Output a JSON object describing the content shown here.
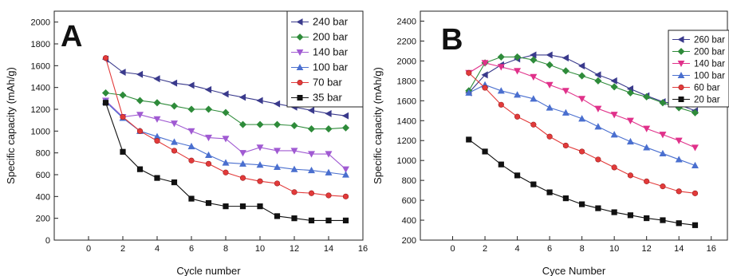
{
  "chart_data": [
    {
      "type": "line",
      "panel_label": "A",
      "xlabel": "Cycle number",
      "ylabel": "Specific capacity (mAh/g)",
      "xlim": [
        -2,
        16
      ],
      "ylim": [
        0,
        2100
      ],
      "xticks": [
        0,
        2,
        4,
        6,
        8,
        10,
        12,
        14,
        16
      ],
      "yticks": [
        0,
        200,
        400,
        600,
        800,
        1000,
        1200,
        1400,
        1600,
        1800,
        2000
      ],
      "legend_position": "top-right",
      "x": [
        1,
        2,
        3,
        4,
        5,
        6,
        7,
        8,
        9,
        10,
        11,
        12,
        13,
        14,
        15
      ],
      "series": [
        {
          "name": "240 bar",
          "color": "#3a3a8c",
          "marker": "triangle-left",
          "values": [
            1660,
            1540,
            1520,
            1480,
            1440,
            1420,
            1380,
            1340,
            1310,
            1280,
            1250,
            1220,
            1190,
            1160,
            1140
          ]
        },
        {
          "name": "200 bar",
          "color": "#2e8b3a",
          "marker": "diamond",
          "values": [
            1350,
            1330,
            1280,
            1260,
            1230,
            1200,
            1200,
            1170,
            1060,
            1060,
            1060,
            1050,
            1020,
            1020,
            1030
          ]
        },
        {
          "name": "140 bar",
          "color": "#a05ad2",
          "marker": "triangle-down",
          "values": [
            1280,
            1130,
            1150,
            1110,
            1070,
            1000,
            940,
            930,
            800,
            850,
            820,
            820,
            790,
            790,
            650
          ]
        },
        {
          "name": "100 bar",
          "color": "#4a6fcf",
          "marker": "triangle-up",
          "values": [
            1270,
            1120,
            1000,
            950,
            900,
            860,
            780,
            710,
            700,
            690,
            670,
            650,
            640,
            620,
            600
          ]
        },
        {
          "name": "70 bar",
          "color": "#e23a3a",
          "marker": "circle",
          "values": [
            1670,
            1130,
            1000,
            910,
            820,
            730,
            700,
            620,
            570,
            540,
            520,
            440,
            430,
            410,
            400
          ]
        },
        {
          "name": "35 bar",
          "color": "#111111",
          "marker": "square",
          "values": [
            1260,
            810,
            650,
            570,
            530,
            380,
            340,
            310,
            310,
            310,
            220,
            200,
            180,
            180,
            180
          ]
        }
      ]
    },
    {
      "type": "line",
      "panel_label": "B",
      "xlabel": "Cyce Number",
      "ylabel": "Specific capacity (mAh/g)",
      "xlim": [
        -2,
        17
      ],
      "ylim": [
        200,
        2500
      ],
      "xticks": [
        0,
        2,
        4,
        6,
        8,
        10,
        12,
        14,
        16
      ],
      "yticks": [
        200,
        400,
        600,
        800,
        1000,
        1200,
        1400,
        1600,
        1800,
        2000,
        2200,
        2400
      ],
      "legend_position": "top-right",
      "x": [
        1,
        2,
        3,
        4,
        5,
        6,
        7,
        8,
        9,
        10,
        11,
        12,
        13,
        14,
        15
      ],
      "series": [
        {
          "name": "260 bar",
          "color": "#3a3a8c",
          "marker": "triangle-left",
          "values": [
            1680,
            1860,
            1960,
            2020,
            2060,
            2060,
            2030,
            1950,
            1860,
            1800,
            1720,
            1650,
            1590,
            1560,
            1500
          ]
        },
        {
          "name": "200 bar",
          "color": "#2e8b3a",
          "marker": "diamond",
          "values": [
            1700,
            1980,
            2040,
            2040,
            2010,
            1960,
            1900,
            1850,
            1800,
            1740,
            1680,
            1640,
            1580,
            1530,
            1480
          ]
        },
        {
          "name": "140 bar",
          "color": "#e0318a",
          "marker": "triangle-down",
          "values": [
            1880,
            1980,
            1940,
            1900,
            1840,
            1760,
            1700,
            1620,
            1520,
            1460,
            1400,
            1320,
            1260,
            1200,
            1130
          ]
        },
        {
          "name": "100 bar",
          "color": "#4a6fcf",
          "marker": "triangle-up",
          "values": [
            1680,
            1760,
            1700,
            1660,
            1620,
            1530,
            1480,
            1420,
            1340,
            1260,
            1190,
            1130,
            1070,
            1010,
            950
          ]
        },
        {
          "name": "60 bar",
          "color": "#e23a3a",
          "marker": "circle",
          "values": [
            1880,
            1730,
            1560,
            1440,
            1360,
            1240,
            1150,
            1090,
            1010,
            930,
            850,
            790,
            740,
            690,
            670
          ]
        },
        {
          "name": "20 bar",
          "color": "#111111",
          "marker": "square",
          "values": [
            1210,
            1090,
            960,
            850,
            760,
            680,
            620,
            560,
            520,
            480,
            450,
            420,
            400,
            370,
            350
          ]
        }
      ]
    }
  ]
}
